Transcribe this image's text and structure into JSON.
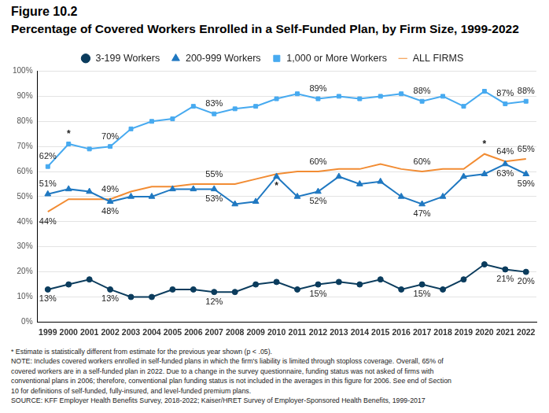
{
  "chart_data": {
    "type": "line",
    "figure_label": "Figure 10.2",
    "title": "Percentage of Covered Workers Enrolled in a Self-Funded Plan, by Firm Size, 1999-2022",
    "categories": [
      "1999",
      "2000",
      "2001",
      "2002",
      "2003",
      "2004",
      "2005",
      "2006",
      "2007",
      "2008",
      "2009",
      "2010",
      "2011",
      "2012",
      "2013",
      "2014",
      "2015",
      "2016",
      "2017",
      "2018",
      "2019",
      "2020",
      "2021",
      "2022"
    ],
    "series": [
      {
        "name": "3-199 Workers",
        "color": "#0b3c5d",
        "marker": "circle",
        "values": [
          13,
          15,
          17,
          13,
          10,
          10,
          13,
          13,
          12,
          12,
          15,
          16,
          13,
          15,
          16,
          15,
          17,
          13,
          15,
          13,
          17,
          23,
          21,
          20
        ],
        "value_labels": [
          "13%",
          null,
          null,
          "13%",
          null,
          null,
          null,
          null,
          "12%",
          null,
          null,
          null,
          null,
          "15%",
          null,
          null,
          null,
          null,
          "15%",
          null,
          null,
          null,
          "21%",
          "20%"
        ]
      },
      {
        "name": "200-999 Workers",
        "color": "#1f78c1",
        "marker": "triangle",
        "values": [
          51,
          53,
          52,
          48,
          50,
          50,
          53,
          53,
          53,
          47,
          48,
          58,
          50,
          52,
          58,
          55,
          56,
          50,
          47,
          50,
          58,
          59,
          63,
          59
        ],
        "value_labels": [
          "51%",
          null,
          null,
          "48%",
          null,
          null,
          null,
          null,
          "53%",
          null,
          null,
          null,
          null,
          "52%",
          null,
          null,
          null,
          null,
          "47%",
          null,
          null,
          null,
          "63%",
          "59%"
        ]
      },
      {
        "name": "1,000 or More Workers",
        "color": "#47aaf0",
        "marker": "square",
        "values": [
          62,
          71,
          69,
          70,
          77,
          80,
          81,
          86,
          83,
          85,
          86,
          89,
          91,
          89,
          90,
          89,
          90,
          91,
          88,
          90,
          86,
          92,
          87,
          88
        ],
        "value_labels": [
          "62%",
          null,
          null,
          "70%",
          null,
          null,
          null,
          null,
          "83%",
          null,
          null,
          null,
          null,
          "89%",
          null,
          null,
          null,
          null,
          "88%",
          null,
          null,
          null,
          "87%",
          "88%"
        ]
      },
      {
        "name": "ALL FIRMS",
        "color": "#f28c33",
        "marker": "none",
        "values": [
          44,
          49,
          49,
          49,
          52,
          54,
          54,
          55,
          55,
          55,
          57,
          59,
          60,
          60,
          61,
          61,
          63,
          61,
          60,
          61,
          61,
          67,
          64,
          65
        ],
        "value_labels": [
          "44%",
          null,
          null,
          "49%",
          null,
          null,
          null,
          null,
          "55%",
          null,
          null,
          null,
          null,
          "60%",
          null,
          null,
          null,
          null,
          "60%",
          null,
          null,
          null,
          "64%",
          "65%"
        ]
      }
    ],
    "annotations": [
      {
        "series": "1,000 or More Workers",
        "x": "2000",
        "text": "*"
      },
      {
        "series": "200-999 Workers",
        "x": "2010",
        "text": "*"
      },
      {
        "series": "ALL FIRMS",
        "x": "2020",
        "text": "*"
      }
    ],
    "ylim": [
      0,
      100
    ],
    "yticks": [
      {
        "value": 0,
        "label": "0%"
      },
      {
        "value": 10,
        "label": "10%"
      },
      {
        "value": 20,
        "label": "20%"
      },
      {
        "value": 30,
        "label": "30%"
      },
      {
        "value": 40,
        "label": "40%"
      },
      {
        "value": 50,
        "label": "50%"
      },
      {
        "value": 60,
        "label": "60%"
      },
      {
        "value": 70,
        "label": "70%"
      },
      {
        "value": 80,
        "label": "80%"
      },
      {
        "value": 90,
        "label": "90%"
      },
      {
        "value": 100,
        "label": "100%"
      }
    ],
    "grid": true,
    "legend": "top",
    "data_labels": true,
    "notes": [
      "* Estimate is statistically different from estimate for the previous year shown (p < .05).",
      "NOTE: Includes covered workers enrolled in self-funded plans in which the firm's liability is limited through stoploss coverage. Overall, 65% of",
      "covered workers are in a self-funded plan in 2022. Due to a change in the survey questionnaire, funding status was not asked of firms with",
      "conventional plans in 2006; therefore, conventional plan funding status is not included in the averages in this figure for 2006. See end of Section",
      "10 for definitions of self-funded, fully-insured, and level-funded premium plans.",
      "SOURCE: KFF Employer Health Benefits Survey, 2018-2022; Kaiser/HRET Survey of Employer-Sponsored Health Benefits, 1999-2017"
    ]
  }
}
